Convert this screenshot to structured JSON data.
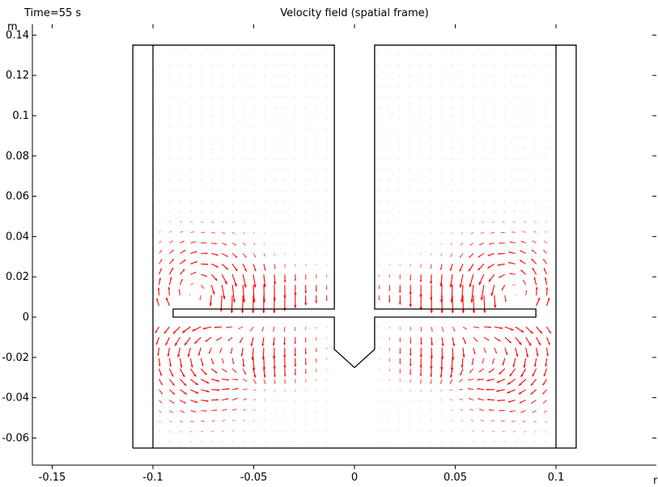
{
  "header": {
    "time_label": "Time=55 s",
    "title": "Velocity field (spatial frame)"
  },
  "chart_data": {
    "type": "vector-field",
    "title": "Velocity field (spatial frame)",
    "annotation": "Time=55 s",
    "x_unit": "r",
    "y_unit": "m",
    "xlim": [
      -0.15,
      0.15
    ],
    "ylim": [
      -0.075,
      0.148
    ],
    "x_ticks": [
      -0.15,
      -0.1,
      -0.05,
      0,
      0.05,
      0.1
    ],
    "x_tick_labels": [
      "-0.15",
      "-0.1",
      "-0.05",
      "0",
      "0.05",
      "0.1"
    ],
    "y_ticks": [
      0.14,
      0.12,
      0.1,
      0.08,
      0.06,
      0.04,
      0.02,
      0,
      -0.02,
      -0.04,
      -0.06
    ],
    "y_tick_labels": [
      "0.14",
      "0.12",
      "0.1",
      "0.08",
      "0.06",
      "0.04",
      "0.02",
      "0",
      "-0.02",
      "-0.04",
      "-0.06"
    ],
    "grid": false,
    "arrow_color": "#ff0000",
    "outline_color": "#000000",
    "vessel_outline": [
      [
        -0.11,
        -0.065
      ],
      [
        0.11,
        -0.065
      ],
      [
        0.11,
        0.135
      ],
      [
        0.01,
        0.135
      ],
      [
        0.01,
        0.004
      ],
      [
        0.09,
        0.004
      ],
      [
        0.09,
        0.0
      ],
      [
        0.01,
        0.0
      ],
      [
        0.01,
        -0.016
      ],
      [
        0.0,
        -0.025
      ],
      [
        -0.01,
        -0.016
      ],
      [
        -0.01,
        0.0
      ],
      [
        -0.09,
        0.0
      ],
      [
        -0.09,
        0.004
      ],
      [
        -0.01,
        0.004
      ],
      [
        -0.01,
        0.135
      ],
      [
        -0.11,
        0.135
      ],
      [
        -0.11,
        -0.065
      ]
    ],
    "baffle_lines": [
      [
        [
          -0.1,
          -0.065
        ],
        [
          -0.1,
          0.135
        ]
      ],
      [
        [
          0.1,
          -0.065
        ],
        [
          0.1,
          0.135
        ]
      ]
    ],
    "flow_features": {
      "impeller_tip_radius": 0.09,
      "upper_vortex_centers": [
        [
          -0.075,
          0.012
        ],
        [
          0.075,
          0.012
        ]
      ],
      "lower_vortex_centers": [
        [
          -0.075,
          -0.018
        ],
        [
          0.075,
          -0.018
        ]
      ],
      "max_velocity_region_y": [
        -0.03,
        0.02
      ]
    }
  }
}
